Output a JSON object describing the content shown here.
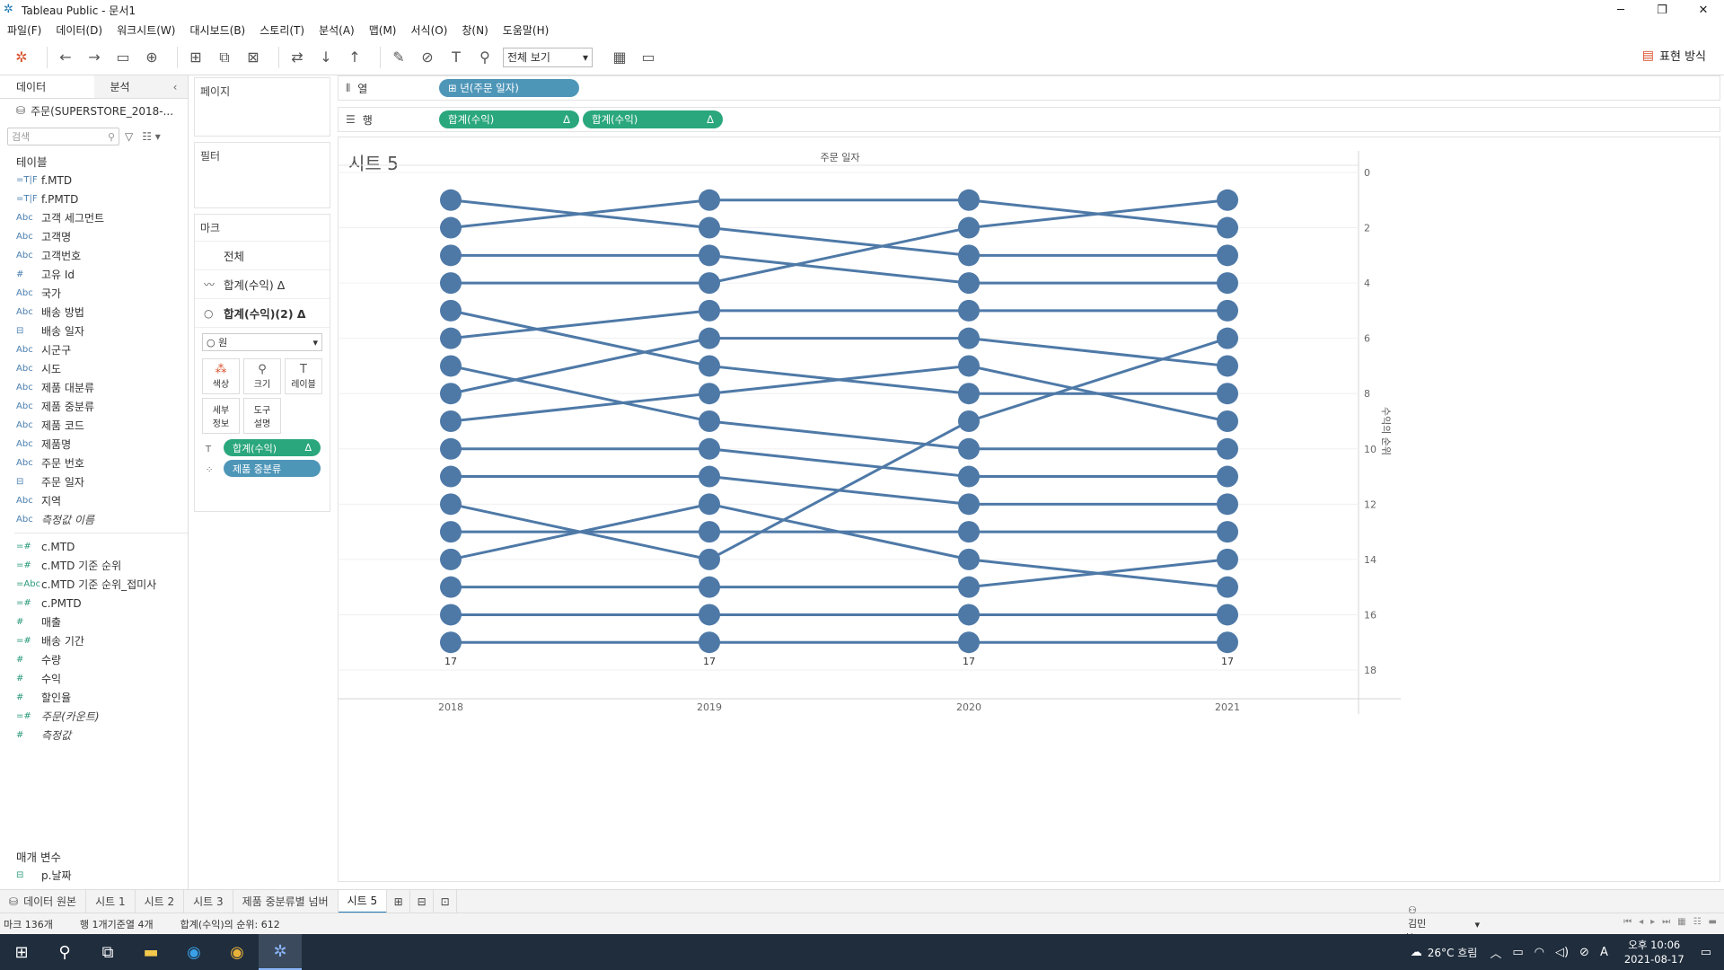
{
  "window": {
    "title": "Tableau Public - 문서1",
    "minimize": "─",
    "maximize": "❐",
    "close": "✕"
  },
  "menu": [
    "파일(F)",
    "데이터(D)",
    "워크시트(W)",
    "대시보드(B)",
    "스토리(T)",
    "분석(A)",
    "맵(M)",
    "서식(O)",
    "창(N)",
    "도움말(H)"
  ],
  "toolbar": {
    "view_select": "전체 보기",
    "show_me": "표현 방식"
  },
  "datapane": {
    "tab_data": "데이터",
    "tab_analysis": "분석",
    "source": "주문(SUPERSTORE_2018-...",
    "search_placeholder": "검색",
    "tables_header": "테이블",
    "dimensions": [
      {
        "type": "=T|F",
        "name": "f.MTD"
      },
      {
        "type": "=T|F",
        "name": "f.PMTD"
      },
      {
        "type": "Abc",
        "name": "고객 세그먼트"
      },
      {
        "type": "Abc",
        "name": "고객명"
      },
      {
        "type": "Abc",
        "name": "고객번호"
      },
      {
        "type": "#",
        "name": "고유 Id"
      },
      {
        "type": "Abc",
        "name": "국가"
      },
      {
        "type": "Abc",
        "name": "배송 방법"
      },
      {
        "type": "date",
        "name": "배송 일자"
      },
      {
        "type": "Abc",
        "name": "시군구"
      },
      {
        "type": "Abc",
        "name": "시도"
      },
      {
        "type": "Abc",
        "name": "제품 대분류"
      },
      {
        "type": "Abc",
        "name": "제품 중분류"
      },
      {
        "type": "Abc",
        "name": "제품 코드"
      },
      {
        "type": "Abc",
        "name": "제품명"
      },
      {
        "type": "Abc",
        "name": "주문 번호"
      },
      {
        "type": "date",
        "name": "주문 일자"
      },
      {
        "type": "Abc",
        "name": "지역"
      },
      {
        "type": "Abc",
        "name": "측정값 이름",
        "italic": true
      }
    ],
    "measures": [
      {
        "type": "=#",
        "name": "c.MTD"
      },
      {
        "type": "=#",
        "name": "c.MTD 기준 순위"
      },
      {
        "type": "=Abc",
        "name": "c.MTD 기준 순위_접미사"
      },
      {
        "type": "=#",
        "name": "c.PMTD"
      },
      {
        "type": "#",
        "name": "매출"
      },
      {
        "type": "=#",
        "name": "배송 기간"
      },
      {
        "type": "#",
        "name": "수량"
      },
      {
        "type": "#",
        "name": "수익"
      },
      {
        "type": "#",
        "name": "할인율"
      },
      {
        "type": "=#",
        "name": "주문(카운트)",
        "italic": true
      },
      {
        "type": "#",
        "name": "측정값",
        "italic": true
      }
    ],
    "params_header": "매개 변수",
    "params": [
      {
        "type": "date",
        "name": "p.날짜"
      }
    ]
  },
  "cards": {
    "pages": "페이지",
    "filters": "필터",
    "marks": "마크",
    "marks_all": "전체",
    "marks_layer1": "합계(수익) Δ",
    "marks_layer2": "합계(수익)(2) Δ",
    "mark_type": "원",
    "btn_color": "색상",
    "btn_size": "크기",
    "btn_label": "레이블",
    "btn_detail": "세부\n정보",
    "btn_tooltip": "도구\n설명",
    "pill_label": "합계(수익)",
    "pill_label_delta": "Δ",
    "pill_detail": "제품 중분류"
  },
  "shelves": {
    "columns_label": "열",
    "rows_label": "행",
    "columns_pill": "⊞ 년(주문 일자)",
    "rows_pill1": "합계(수익)",
    "rows_pill2": "합계(수익)",
    "delta": "Δ"
  },
  "sheet": {
    "title": "시트 5"
  },
  "chart_data": {
    "type": "line",
    "header": "주문 일자",
    "ylabel_left": "수익의 순위",
    "ylabel_right": "수익의 순위",
    "x": [
      "2018",
      "2019",
      "2020",
      "2021"
    ],
    "ylim": [
      0,
      18
    ],
    "y_reversed": true,
    "yticks": [
      0,
      2,
      4,
      6,
      8,
      10,
      12,
      14,
      16,
      18
    ],
    "color": "#4e79a7",
    "marker": "circle",
    "series": [
      {
        "values": [
          1,
          2,
          3,
          3
        ]
      },
      {
        "values": [
          2,
          1,
          1,
          2
        ]
      },
      {
        "values": [
          3,
          3,
          4,
          4
        ]
      },
      {
        "values": [
          4,
          4,
          2,
          1
        ]
      },
      {
        "values": [
          5,
          7,
          8,
          8
        ]
      },
      {
        "values": [
          6,
          5,
          5,
          5
        ]
      },
      {
        "values": [
          7,
          9,
          10,
          10
        ]
      },
      {
        "values": [
          8,
          6,
          6,
          7
        ]
      },
      {
        "values": [
          9,
          8,
          7,
          9
        ]
      },
      {
        "values": [
          10,
          10,
          11,
          11
        ]
      },
      {
        "values": [
          11,
          11,
          12,
          12
        ]
      },
      {
        "values": [
          12,
          14,
          9,
          6
        ]
      },
      {
        "values": [
          13,
          13,
          13,
          13
        ]
      },
      {
        "values": [
          14,
          12,
          14,
          15
        ]
      },
      {
        "values": [
          15,
          15,
          15,
          14
        ]
      },
      {
        "values": [
          16,
          16,
          16,
          16
        ]
      },
      {
        "values": [
          17,
          17,
          17,
          17
        ]
      }
    ],
    "bottom_labels": [
      "17",
      "17",
      "17",
      "17"
    ]
  },
  "tabs": {
    "datasource": "데이터 원본",
    "sheets": [
      "시트 1",
      "시트 2",
      "시트 3",
      "제품 중분류별 넘버",
      "시트 5"
    ],
    "active": "시트 5"
  },
  "status": {
    "marks": "마크 136개",
    "rows": "행 1개기준열 4개",
    "sum": "합계(수익)의 순위: 612",
    "user": "김민형"
  },
  "taskbar": {
    "weather": "26°C 흐림",
    "time": "오후 10:06",
    "date": "2021-08-17",
    "ime": "A"
  }
}
